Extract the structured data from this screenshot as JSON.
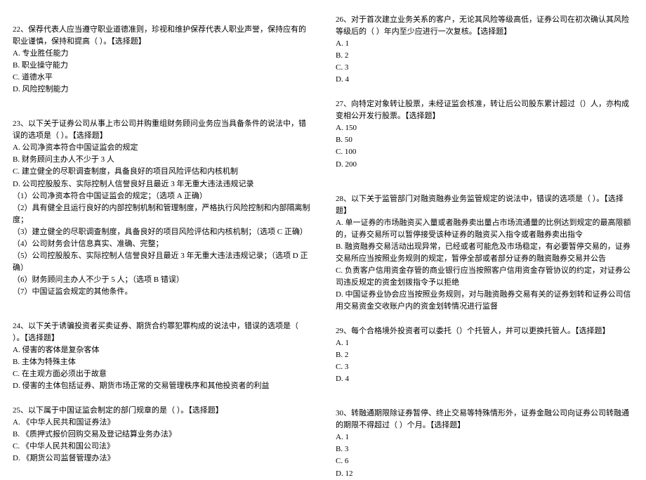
{
  "left": {
    "q22": {
      "stem": "22、保荐代表人应当遵守职业道德准则，珍视和维护保荐代表人职业声誉，保持应有的职业谨慎，保持和提高（ ）。【选择题】",
      "opts": [
        "A. 专业胜任能力",
        "B. 职业操守能力",
        "C. 道德水平",
        "D. 风险控制能力"
      ]
    },
    "q23": {
      "stem": "23、以下关于证券公司从事上市公司并购重组财务顾问业务应当具备条件的说法中，错误的选项是（ ）。【选择题】",
      "opts": [
        "A. 公司净资本符合中国证监会的规定",
        "B. 财务顾问主办人不少于 3 人",
        "C. 建立健全的尽职调查制度，具备良好的项目风险评估和内核机制",
        "D. 公司控股股东、实际控制人信誉良好且最近 3 年无重大违法违规记录"
      ],
      "notes": [
        "（1）公司净资本符合中国证监会的规定；（选项 A 正确）",
        "（2）具有健全且运行良好的内部控制机制和管理制度，严格执行风险控制和内部隔离制度；",
        "（3）建立健全的尽职调查制度，具备良好的项目风险评估和内核机制；（选项 C 正确）",
        "（4）公司财务会计信息真实、准确、完整；",
        "（5）公司控股股东、实际控制人信誉良好且最近 3 年无重大违法违规记录；（选项 D 正确）",
        "（6）财务顾问主办人不少于 5 人；（选项 B 错误）",
        "（7）中国证监会规定的其他条件。"
      ]
    },
    "q24": {
      "stem": "24、以下关于诱骗投资者买卖证券、期货合约罪犯罪构成的说法中，错误的选项是（ ）。【选择题】",
      "opts": [
        "A. 侵害的客体是复杂客体",
        "B. 主体为特殊主体",
        "C. 在主观方面必须出于故意",
        "D. 侵害的主体包括证券、期货市场正常的交易管理秩序和其他投资者的利益"
      ]
    },
    "q25": {
      "stem": "25、以下属于中国证监会制定的部门规章的是（ ）。【选择题】",
      "opts": [
        "A. 《中华人民共和国证券法》",
        "B. 《质押式报价回购交易及登记结算业务办法》",
        "C. 《中华人民共和国公司法》",
        "D. 《期货公司监督管理办法》"
      ]
    }
  },
  "right": {
    "q26": {
      "stem": "26、对于首次建立业务关系的客户，无论其风险等级高低，证券公司在初次确认其风险等级后的（ ）年内至少应进行一次复核。【选择题】",
      "opts": [
        "A. 1",
        "B. 2",
        "C. 3",
        "D. 4"
      ]
    },
    "q27": {
      "stem": "27、向特定对象转让股票，未经证监会核准，转让后公司股东累计超过（）人，亦构成变相公开发行股票。【选择题】",
      "opts": [
        "A. 150",
        "B. 50",
        "C. 100",
        "D. 200"
      ]
    },
    "q28": {
      "stem": "28、以下关于监管部门对融资融券业务监管规定的说法中，错误的选项是（ ）。【选择题】",
      "opts": [
        "A. 单一证券的市场融资买入量或者融券卖出量占市场流通量的比例达到规定的最高限额的，证券交易所可以暂停接受该种证券的融资买入指令或者融券卖出指令",
        "B. 融资融券交易活动出现异常，已经或者可能危及市场稳定，有必要暂停交易的，证券交易所应当按照业务规则的规定，暂停全部或者部分证券的融资融券交易并公告",
        "C. 负责客户信用资金存管的商业银行应当按照客户信用资金存管协议的约定，对证券公司违反规定的资金划拨指令予以拒绝",
        "D. 中国证券业协会应当按照业务规则，对与融资融券交易有关的证券划转和证券公司信用交易资金交收账户内的资金划转情况进行监督"
      ]
    },
    "q29": {
      "stem": "29、每个合格境外投资者可以委托（）个托管人，并可以更换托管人。【选择题】",
      "opts": [
        "A. 1",
        "B. 2",
        "C. 3",
        "D. 4"
      ]
    },
    "q30": {
      "stem": "30、转融通期限除证券暂停、终止交易等特殊情形外，证券金融公司向证券公司转融通的期限不得超过（ ）个月。【选择题】",
      "opts": [
        "A. 1",
        "B. 3",
        "C. 6",
        "D. 12"
      ]
    }
  }
}
